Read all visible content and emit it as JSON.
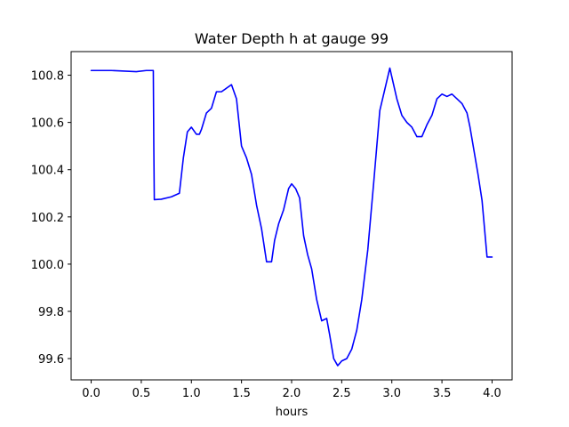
{
  "chart_data": {
    "type": "line",
    "title": "Water Depth h at gauge 99",
    "xlabel": "hours",
    "ylabel": "",
    "xlim": [
      -0.2,
      4.2
    ],
    "ylim": [
      99.51,
      100.9
    ],
    "x_ticks": [
      0.0,
      0.5,
      1.0,
      1.5,
      2.0,
      2.5,
      3.0,
      3.5,
      4.0
    ],
    "x_tick_labels": [
      "0.0",
      "0.5",
      "1.0",
      "1.5",
      "2.0",
      "2.5",
      "3.0",
      "3.5",
      "4.0"
    ],
    "y_ticks": [
      99.6,
      99.8,
      100.0,
      100.2,
      100.4,
      100.6,
      100.8
    ],
    "y_tick_labels": [
      "99.6",
      "99.8",
      "100.0",
      "100.2",
      "100.4",
      "100.6",
      "100.8"
    ],
    "grid": false,
    "series": [
      {
        "color": "#0000ff",
        "x": [
          0.0,
          0.2,
          0.45,
          0.55,
          0.62,
          0.625,
          0.63,
          0.7,
          0.8,
          0.88,
          0.92,
          0.96,
          1.0,
          1.05,
          1.08,
          1.1,
          1.15,
          1.2,
          1.25,
          1.3,
          1.35,
          1.4,
          1.45,
          1.5,
          1.55,
          1.6,
          1.65,
          1.7,
          1.75,
          1.8,
          1.83,
          1.87,
          1.92,
          1.97,
          2.0,
          2.04,
          2.08,
          2.12,
          2.16,
          2.2,
          2.25,
          2.3,
          2.35,
          2.38,
          2.42,
          2.46,
          2.5,
          2.55,
          2.6,
          2.65,
          2.7,
          2.76,
          2.82,
          2.88,
          2.93,
          2.98,
          3.05,
          3.1,
          3.15,
          3.2,
          3.25,
          3.3,
          3.35,
          3.4,
          3.45,
          3.5,
          3.55,
          3.6,
          3.65,
          3.7,
          3.75,
          3.78,
          3.82,
          3.86,
          3.9,
          3.95,
          4.0
        ],
        "y": [
          100.82,
          100.82,
          100.815,
          100.82,
          100.82,
          100.5,
          100.273,
          100.275,
          100.285,
          100.3,
          100.45,
          100.56,
          100.58,
          100.55,
          100.55,
          100.57,
          100.64,
          100.66,
          100.73,
          100.73,
          100.745,
          100.76,
          100.7,
          100.5,
          100.45,
          100.38,
          100.25,
          100.15,
          100.01,
          100.01,
          100.1,
          100.17,
          100.23,
          100.32,
          100.34,
          100.32,
          100.28,
          100.12,
          100.04,
          99.98,
          99.85,
          99.76,
          99.77,
          99.7,
          99.6,
          99.57,
          99.59,
          99.6,
          99.64,
          99.72,
          99.85,
          100.06,
          100.35,
          100.65,
          100.74,
          100.83,
          100.7,
          100.63,
          100.6,
          100.58,
          100.54,
          100.54,
          100.59,
          100.63,
          100.7,
          100.72,
          100.71,
          100.72,
          100.7,
          100.68,
          100.64,
          100.58,
          100.48,
          100.38,
          100.27,
          100.03,
          100.03
        ]
      }
    ]
  }
}
